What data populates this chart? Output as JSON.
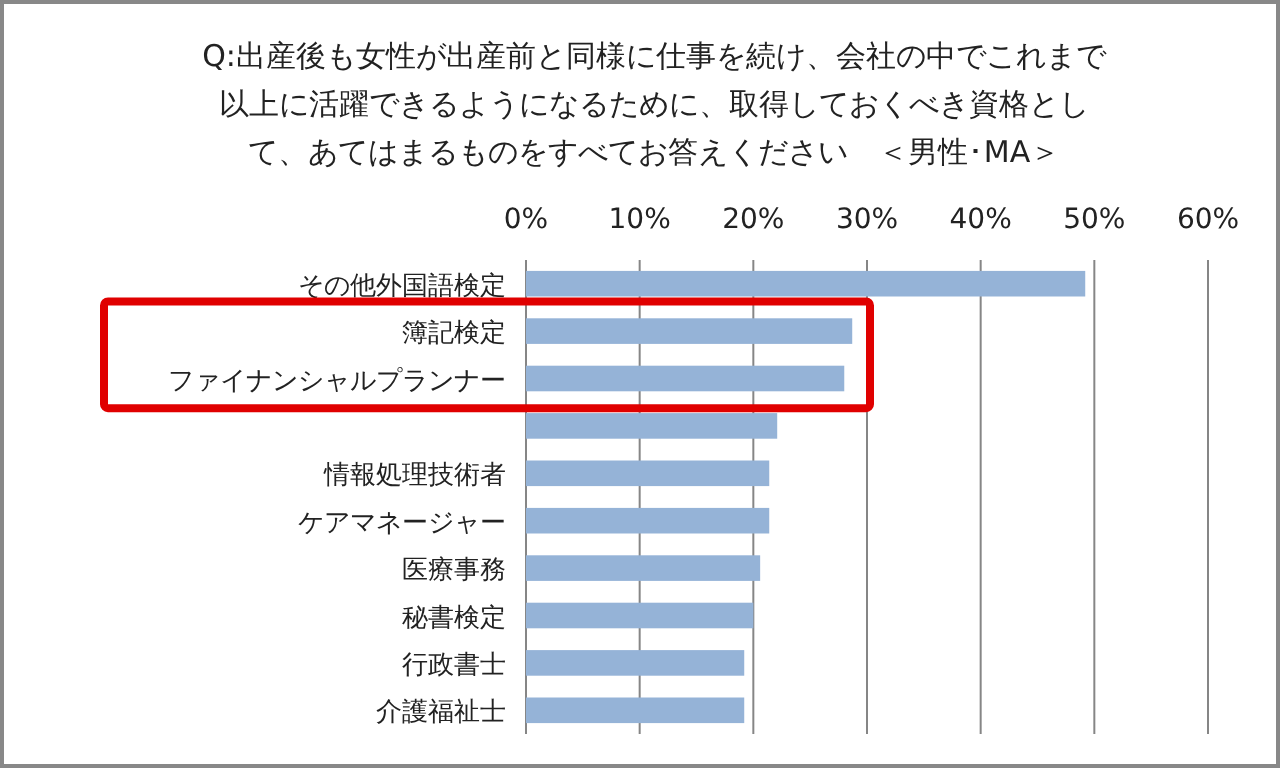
{
  "chart_data": {
    "type": "bar",
    "orientation": "horizontal",
    "title": "Q:出産後も女性が出産前と同様に仕事を続け、会社の中でこれまで以上に活躍できるようになるために、取得しておくべき資格として、あてはまるものをすべてお答えください　＜男性･MA＞",
    "categories": [
      "その他外国語検定",
      "簿記検定",
      "ファイナンシャルプランナー",
      null,
      "情報処理技術者",
      "ケアマネージャー",
      "医療事務",
      "秘書検定",
      "行政書士",
      "介護福祉士"
    ],
    "values": [
      49.2,
      28.7,
      28.0,
      22.1,
      21.4,
      21.4,
      20.6,
      20.0,
      19.2,
      19.2
    ],
    "color": "#95b3d7",
    "xlim": [
      0,
      60
    ],
    "xticks": [
      {
        "value": 0,
        "label": "0%"
      },
      {
        "value": 10,
        "label": "10%"
      },
      {
        "value": 20,
        "label": "20%"
      },
      {
        "value": 30,
        "label": "30%"
      },
      {
        "value": 40,
        "label": "40%"
      },
      {
        "value": 50,
        "label": "50%"
      },
      {
        "value": 60,
        "label": "60%"
      }
    ],
    "grid": "x"
  }
}
